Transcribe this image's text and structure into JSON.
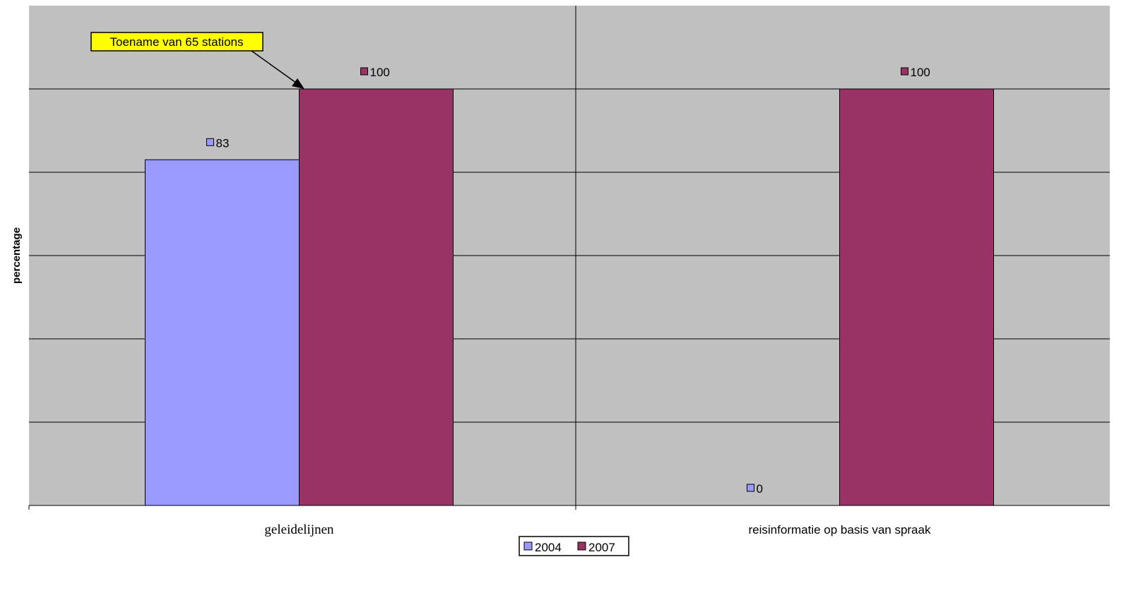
{
  "chart_data": {
    "type": "bar",
    "categories": [
      "geleidelijnen",
      "reisinformatie op basis van spraak"
    ],
    "series": [
      {
        "name": "2004",
        "values": [
          83,
          0
        ],
        "color": "#9999ff"
      },
      {
        "name": "2007",
        "values": [
          100,
          100
        ],
        "color": "#993366"
      }
    ],
    "ylabel": "percentage",
    "ylim": [
      0,
      120
    ],
    "ytick_step": 20,
    "grid": true,
    "plot_background": "#c0c0c0",
    "legend_position": "bottom-center",
    "annotation": {
      "text": "Toename van 65 stations",
      "background": "#ffff00"
    }
  }
}
